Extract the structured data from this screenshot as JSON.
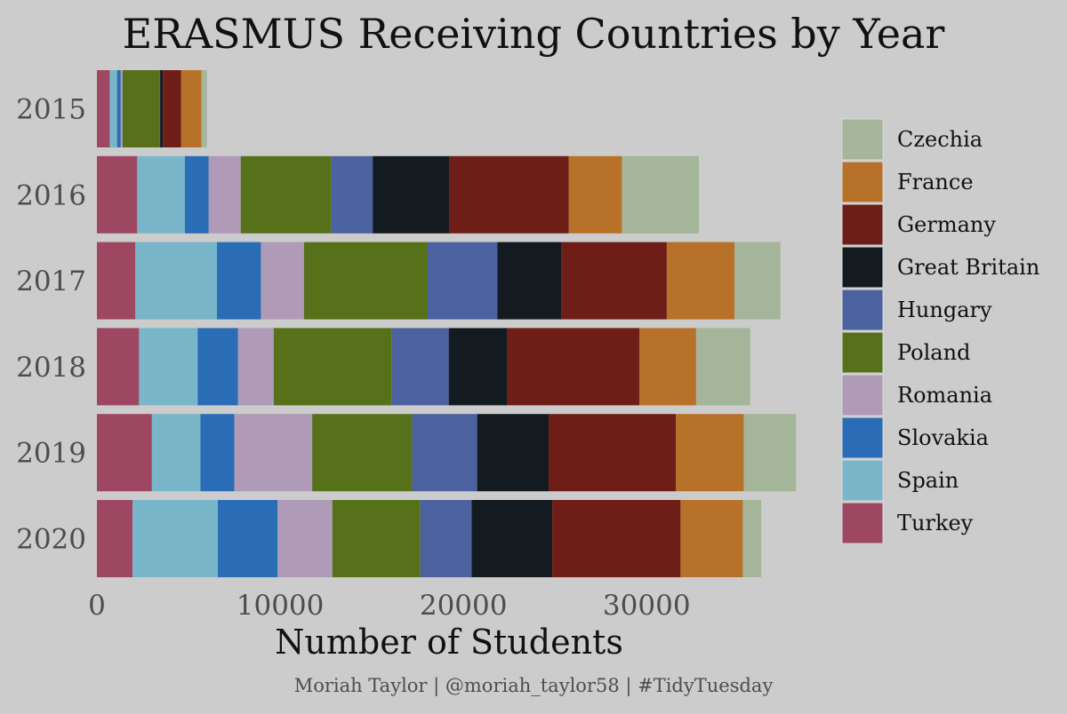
{
  "chart_data": {
    "type": "bar",
    "orientation": "horizontal",
    "stacked": true,
    "title": "ERASMUS Receiving Countries by Year",
    "xlabel": "Number of Students",
    "ylabel": "",
    "caption": "Moriah Taylor | @moriah_taylor58 | #TidyTuesday",
    "categories": [
      "2015",
      "2016",
      "2017",
      "2018",
      "2019",
      "2020"
    ],
    "xlim": [
      0,
      38500
    ],
    "xticks": [
      0,
      10000,
      20000,
      30000
    ],
    "grid": false,
    "legend_position": "right",
    "stack_order": [
      "Turkey",
      "Spain",
      "Slovakia",
      "Romania",
      "Poland",
      "Hungary",
      "Great Britain",
      "Germany",
      "France",
      "Czechia"
    ],
    "legend_order": [
      "Czechia",
      "France",
      "Germany",
      "Great Britain",
      "Hungary",
      "Poland",
      "Romania",
      "Slovakia",
      "Spain",
      "Turkey"
    ],
    "series": [
      {
        "name": "Turkey",
        "color": "#9e4762",
        "values": [
          700,
          2200,
          2100,
          2300,
          3000,
          1950
        ]
      },
      {
        "name": "Spain",
        "color": "#7ab6c9",
        "values": [
          400,
          2600,
          4450,
          3200,
          2650,
          4650
        ]
      },
      {
        "name": "Slovakia",
        "color": "#2a6cb6",
        "values": [
          200,
          1300,
          2400,
          2200,
          1850,
          3250
        ]
      },
      {
        "name": "Romania",
        "color": "#af9ab7",
        "values": [
          100,
          1750,
          2350,
          1950,
          4250,
          3000
        ]
      },
      {
        "name": "Poland",
        "color": "#56711a",
        "values": [
          2000,
          4950,
          6750,
          6450,
          5450,
          4800
        ]
      },
      {
        "name": "Hungary",
        "color": "#4b61a0",
        "values": [
          50,
          2250,
          3800,
          3100,
          3550,
          2800
        ]
      },
      {
        "name": "Great Britain",
        "color": "#141b20",
        "values": [
          150,
          4200,
          3500,
          3200,
          3900,
          4400
        ]
      },
      {
        "name": "Germany",
        "color": "#6e1e17",
        "values": [
          1000,
          6500,
          5750,
          7200,
          6950,
          7000
        ]
      },
      {
        "name": "France",
        "color": "#b87128",
        "values": [
          1100,
          2900,
          3700,
          3100,
          3700,
          3400
        ]
      },
      {
        "name": "Czechia",
        "color": "#a4b59a",
        "values": [
          300,
          4200,
          2500,
          2950,
          2850,
          1000
        ]
      }
    ]
  }
}
